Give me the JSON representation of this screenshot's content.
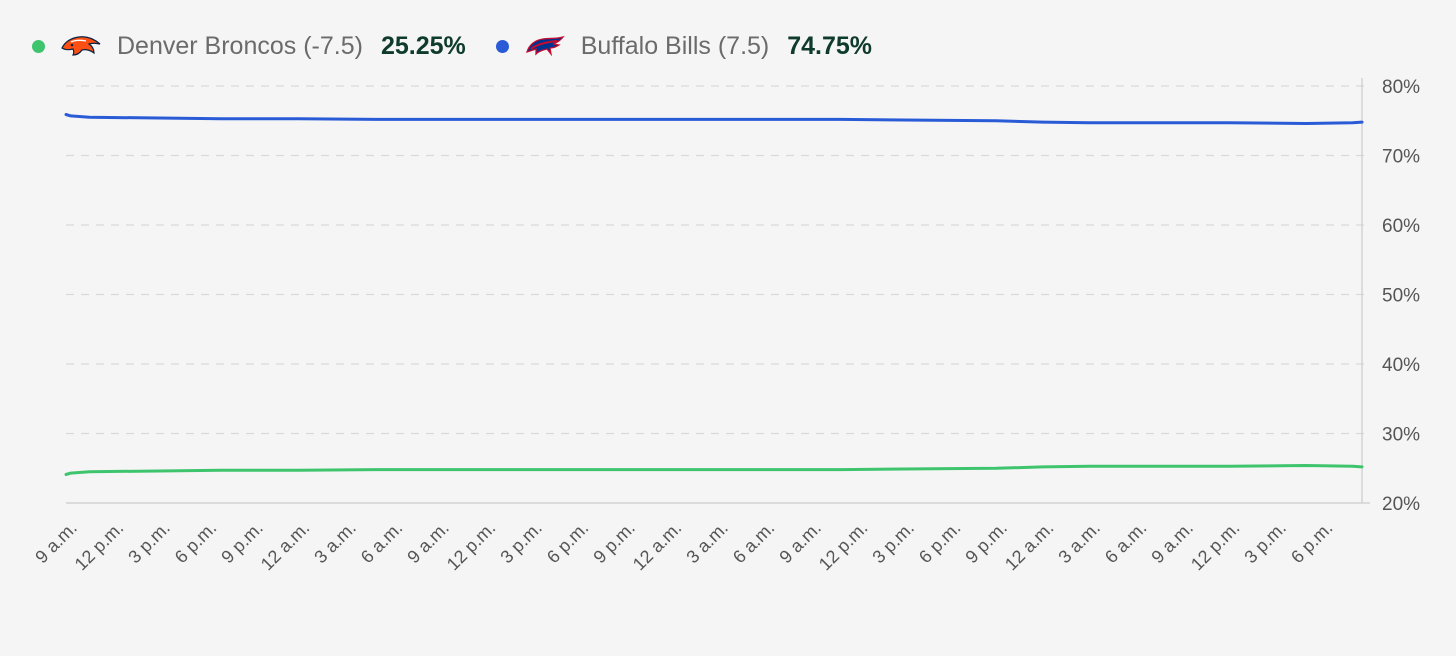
{
  "legend": {
    "team1": {
      "name": "Denver Broncos (-7.5)",
      "value": "25.25%",
      "dot_color": "#3ec46d",
      "logo_icon": "denver-broncos-logo-icon"
    },
    "team2": {
      "name": "Buffalo Bills (7.5)",
      "value": "74.75%",
      "dot_color": "#2a5bd7",
      "logo_icon": "buffalo-bills-logo-icon"
    }
  },
  "colors": {
    "background": "#f5f5f5",
    "grid": "#d9d9d9",
    "axis": "#cccccc",
    "tick_text": "#555555",
    "value_text": "#0f3b2c"
  },
  "chart_data": {
    "type": "line",
    "title": "",
    "xlabel": "",
    "ylabel": "",
    "y_axis_position": "right",
    "ylim": [
      20,
      80
    ],
    "y_ticks": [
      "80%",
      "70%",
      "60%",
      "50%",
      "40%",
      "30%",
      "20%"
    ],
    "y_tick_values": [
      80,
      70,
      60,
      50,
      40,
      30,
      20
    ],
    "grid": true,
    "grid_style": "dashed",
    "legend_position": "top-left",
    "x_ticks": [
      "9 a.m.",
      "12 p.m.",
      "3 p.m.",
      "6 p.m.",
      "9 p.m.",
      "12 a.m.",
      "3 a.m.",
      "6 a.m.",
      "9 a.m.",
      "12 p.m.",
      "3 p.m.",
      "6 p.m.",
      "9 p.m.",
      "12 a.m.",
      "3 a.m.",
      "6 a.m.",
      "9 a.m.",
      "12 p.m.",
      "3 p.m.",
      "6 p.m.",
      "9 p.m.",
      "12 a.m.",
      "3 a.m.",
      "6 a.m.",
      "9 a.m.",
      "12 p.m.",
      "3 p.m.",
      "6 p.m."
    ],
    "x_hours": [
      0,
      3,
      6,
      9,
      12,
      15,
      18,
      21,
      24,
      27,
      30,
      33,
      36,
      39,
      42,
      45,
      48,
      51,
      54,
      57,
      60,
      63,
      66,
      69,
      72,
      75,
      78,
      81
    ],
    "x_range": [
      0,
      83.6
    ],
    "series": [
      {
        "name": "Denver Broncos (-7.5)",
        "color": "#3ec46d",
        "x": [
          0,
          0.3,
          1.5,
          6,
          10,
          15,
          20,
          30,
          40,
          50,
          55,
          60,
          63,
          66,
          70,
          75,
          80,
          83,
          83.6
        ],
        "values": [
          24.1,
          24.3,
          24.5,
          24.6,
          24.7,
          24.7,
          24.8,
          24.8,
          24.8,
          24.8,
          24.9,
          25.0,
          25.2,
          25.3,
          25.3,
          25.3,
          25.4,
          25.3,
          25.2
        ]
      },
      {
        "name": "Buffalo Bills (7.5)",
        "color": "#2a5bd7",
        "x": [
          0,
          0.3,
          1.5,
          6,
          10,
          15,
          20,
          30,
          40,
          50,
          55,
          60,
          63,
          66,
          70,
          75,
          80,
          83,
          83.6
        ],
        "values": [
          75.9,
          75.7,
          75.5,
          75.4,
          75.3,
          75.3,
          75.2,
          75.2,
          75.2,
          75.2,
          75.1,
          75.0,
          74.8,
          74.7,
          74.7,
          74.7,
          74.6,
          74.7,
          74.8
        ]
      }
    ]
  }
}
